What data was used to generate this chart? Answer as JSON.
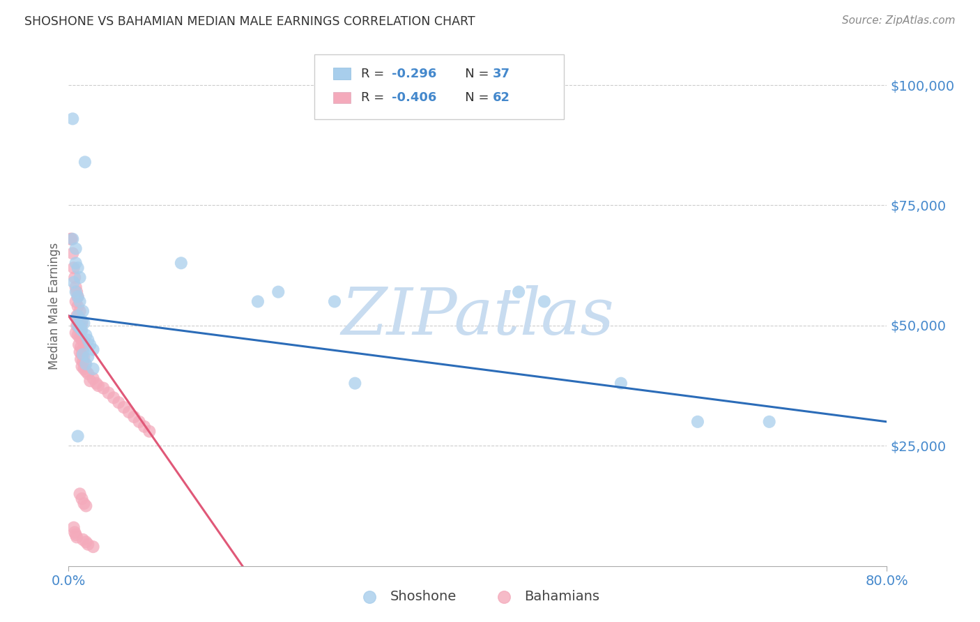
{
  "title": "SHOSHONE VS BAHAMIAN MEDIAN MALE EARNINGS CORRELATION CHART",
  "source": "Source: ZipAtlas.com",
  "ylabel": "Median Male Earnings",
  "xmin": 0.0,
  "xmax": 0.8,
  "ymin": 0,
  "ymax": 108000,
  "shoshone_color": "#A8CEEC",
  "bahamian_color": "#F4AABB",
  "shoshone_line_color": "#2B6CB8",
  "bahamian_line_color": "#E05878",
  "watermark_color": "#C8DCF0",
  "background_color": "#FFFFFF",
  "grid_color": "#CCCCCC",
  "axis_label_color": "#4488CC",
  "title_color": "#333333",
  "legend_r_color": "#4488CC",
  "shoshone_x": [
    0.004,
    0.016,
    0.004,
    0.007,
    0.007,
    0.009,
    0.011,
    0.005,
    0.007,
    0.009,
    0.011,
    0.014,
    0.009,
    0.013,
    0.015,
    0.009,
    0.011,
    0.013,
    0.017,
    0.019,
    0.021,
    0.024,
    0.014,
    0.019,
    0.017,
    0.024,
    0.11,
    0.185,
    0.205,
    0.26,
    0.28,
    0.44,
    0.465,
    0.54,
    0.615,
    0.685,
    0.009
  ],
  "shoshone_y": [
    93000,
    84000,
    68000,
    66000,
    63000,
    62000,
    60000,
    59000,
    57000,
    56000,
    55000,
    53000,
    52000,
    51000,
    50500,
    50000,
    49500,
    49000,
    48000,
    47000,
    46000,
    45000,
    44000,
    43500,
    42000,
    41000,
    63000,
    55000,
    57000,
    55000,
    38000,
    57000,
    55000,
    38000,
    30000,
    30000,
    27000
  ],
  "bahamian_x": [
    0.002,
    0.003,
    0.004,
    0.005,
    0.006,
    0.007,
    0.008,
    0.009,
    0.007,
    0.009,
    0.011,
    0.008,
    0.009,
    0.011,
    0.013,
    0.008,
    0.01,
    0.012,
    0.007,
    0.009,
    0.011,
    0.013,
    0.015,
    0.01,
    0.012,
    0.014,
    0.011,
    0.013,
    0.015,
    0.012,
    0.014,
    0.016,
    0.013,
    0.015,
    0.017,
    0.019,
    0.024,
    0.021,
    0.027,
    0.029,
    0.034,
    0.039,
    0.044,
    0.049,
    0.054,
    0.059,
    0.064,
    0.069,
    0.074,
    0.079,
    0.011,
    0.013,
    0.015,
    0.017,
    0.005,
    0.006,
    0.007,
    0.008,
    0.014,
    0.017,
    0.019,
    0.024
  ],
  "bahamian_y": [
    68000,
    68000,
    65000,
    62000,
    60000,
    58000,
    57000,
    56000,
    55000,
    54000,
    53000,
    52000,
    51500,
    51000,
    50500,
    50000,
    49500,
    49000,
    48500,
    48000,
    47500,
    47000,
    46500,
    46000,
    45500,
    45000,
    44500,
    44000,
    43500,
    43000,
    42500,
    42000,
    41500,
    41000,
    40500,
    40000,
    39000,
    38500,
    38000,
    37500,
    37000,
    36000,
    35000,
    34000,
    33000,
    32000,
    31000,
    30000,
    29000,
    28000,
    15000,
    14000,
    13000,
    12500,
    8000,
    7000,
    6500,
    6000,
    5500,
    5000,
    4500,
    4000
  ],
  "blue_line_x": [
    0.0,
    0.8
  ],
  "blue_line_y": [
    52000,
    30000
  ],
  "pink_line_x": [
    0.0,
    0.17
  ],
  "pink_line_y": [
    52000,
    0
  ]
}
